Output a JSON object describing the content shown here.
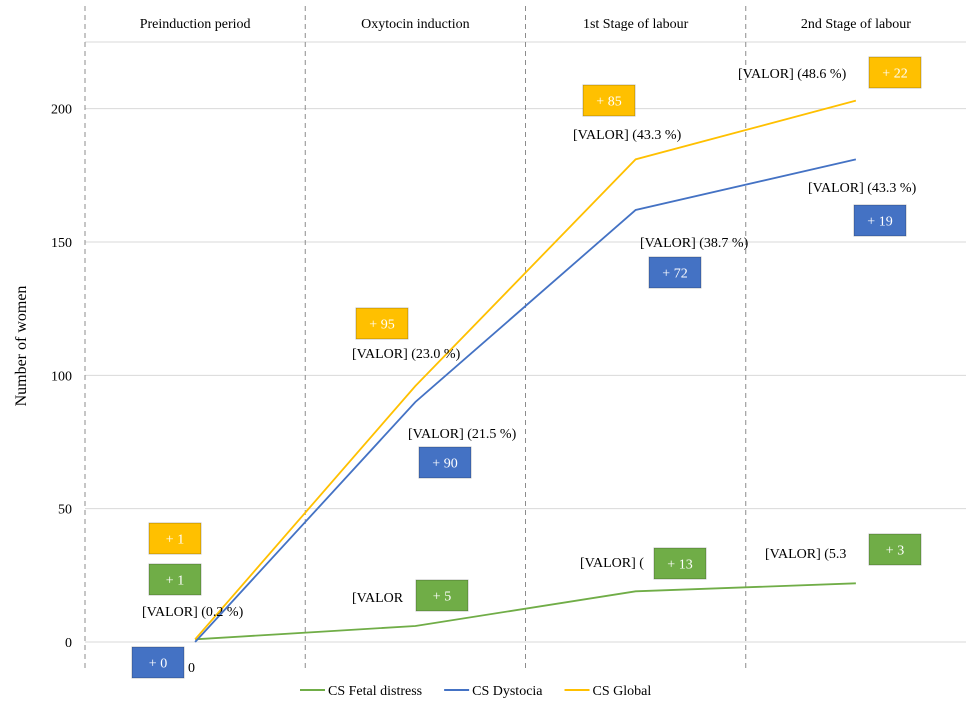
{
  "chart_data": {
    "type": "line",
    "categories": [
      "Preinduction period",
      "Oxytocin induction",
      "1st Stage of labour",
      "2nd Stage of labour"
    ],
    "ylabel": "Number of women",
    "xlabel": "",
    "ylim": [
      0,
      225
    ],
    "yticks": [
      0,
      50,
      100,
      150,
      200
    ],
    "grid": true,
    "legend_position": "bottom",
    "start_x_label": "0",
    "series": [
      {
        "name": "CS Fetal distress",
        "color": "#70ad47",
        "values": [
          1,
          6,
          19,
          22
        ],
        "increments": [
          "+ 1",
          "+ 5",
          "+ 13",
          "+ 3"
        ],
        "pct_labels": [
          "",
          "[VALOR",
          "[VALOR] (",
          "[VALOR] (5.3"
        ]
      },
      {
        "name": "CS Dystocia",
        "color": "#4472c4",
        "values": [
          0,
          90,
          162,
          181
        ],
        "increments": [
          "+ 0",
          "+ 90",
          "+ 72",
          "+ 19"
        ],
        "pct_labels": [
          "",
          "[VALOR] (21.5 %)",
          "[VALOR] (38.7 %)",
          "[VALOR] (43.3 %)"
        ]
      },
      {
        "name": "CS Global",
        "color": "#ffc000",
        "values": [
          1,
          96,
          181,
          203
        ],
        "increments": [
          "+ 1",
          "+ 95",
          "+ 85",
          "+ 22"
        ],
        "pct_labels": [
          "[VALOR] (0.2 %)",
          "[VALOR] (23.0 %)",
          "[VALOR] (43.3 %)",
          "[VALOR] (48.6 %)"
        ]
      }
    ]
  }
}
